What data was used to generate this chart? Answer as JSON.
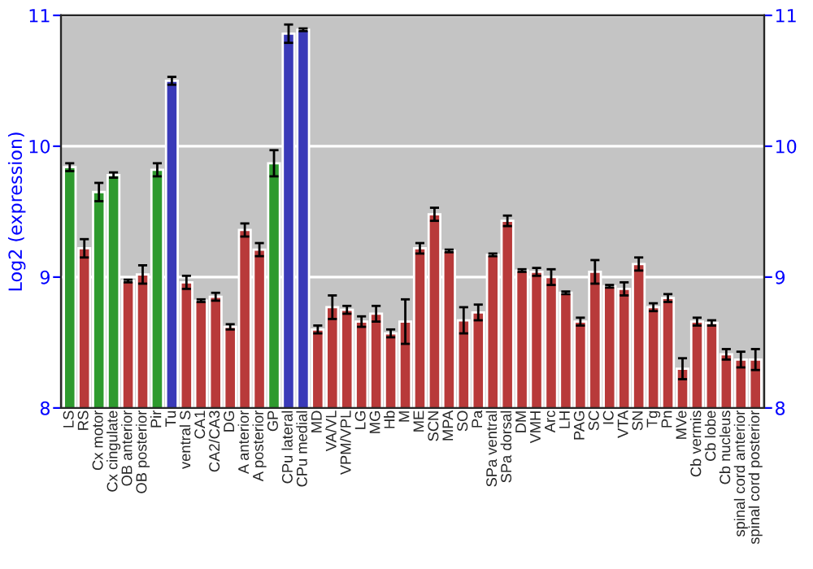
{
  "chart_data": {
    "type": "bar",
    "ylabel": "Log2 (expression)",
    "categories": [
      "LS",
      "RS",
      "Cx motor",
      "Cx cingulate",
      "OB anterior",
      "OB posterior",
      "Pir",
      "Tu",
      "ventral S",
      "CA1",
      "CA2/CA3",
      "DG",
      "A anterior",
      "A posterior",
      "GP",
      "CPu lateral",
      "CPu medial",
      "MD",
      "VA/VL",
      "VPM/VPL",
      "LG",
      "MG",
      "Hb",
      "M",
      "ME",
      "SCN",
      "MPA",
      "SO",
      "Pa",
      "SPa ventral",
      "SPa dorsal",
      "DM",
      "VMH",
      "Arc",
      "LH",
      "PAG",
      "SC",
      "IC",
      "VTA",
      "SN",
      "Tg",
      "Pn",
      "MVe",
      "Cb vermis",
      "Cb lobe",
      "Cb nucleus",
      "spinal cord anterior",
      "spinal cord posterior"
    ],
    "values": [
      9.84,
      9.22,
      9.65,
      9.78,
      8.97,
      9.02,
      9.82,
      10.5,
      8.96,
      8.82,
      8.85,
      8.62,
      9.36,
      9.21,
      9.87,
      10.86,
      10.89,
      8.6,
      8.77,
      8.75,
      8.66,
      8.72,
      8.57,
      8.66,
      9.22,
      9.48,
      9.2,
      8.67,
      8.73,
      9.17,
      9.43,
      9.05,
      9.04,
      9.0,
      8.88,
      8.66,
      9.04,
      8.93,
      8.91,
      9.1,
      8.77,
      8.84,
      8.3,
      8.66,
      8.65,
      8.41,
      8.37,
      8.37
    ],
    "errors": [
      0.03,
      0.07,
      0.07,
      0.02,
      0.01,
      0.07,
      0.05,
      0.03,
      0.05,
      0.01,
      0.03,
      0.02,
      0.05,
      0.05,
      0.1,
      0.07,
      0.01,
      0.03,
      0.09,
      0.03,
      0.04,
      0.06,
      0.03,
      0.17,
      0.04,
      0.05,
      0.01,
      0.1,
      0.06,
      0.01,
      0.04,
      0.01,
      0.03,
      0.06,
      0.01,
      0.03,
      0.09,
      0.01,
      0.05,
      0.05,
      0.03,
      0.03,
      0.08,
      0.03,
      0.02,
      0.04,
      0.06,
      0.08
    ],
    "colors": [
      "#2e9a2e",
      "#b83a3a",
      "#2e9a2e",
      "#2e9a2e",
      "#b83a3a",
      "#b83a3a",
      "#2e9a2e",
      "#3a3ab8",
      "#b83a3a",
      "#b83a3a",
      "#b83a3a",
      "#b83a3a",
      "#b83a3a",
      "#b83a3a",
      "#2e9a2e",
      "#3a3ab8",
      "#3a3ab8",
      "#b83a3a",
      "#b83a3a",
      "#b83a3a",
      "#b83a3a",
      "#b83a3a",
      "#b83a3a",
      "#b83a3a",
      "#b83a3a",
      "#b83a3a",
      "#b83a3a",
      "#b83a3a",
      "#b83a3a",
      "#b83a3a",
      "#b83a3a",
      "#b83a3a",
      "#b83a3a",
      "#b83a3a",
      "#b83a3a",
      "#b83a3a",
      "#b83a3a",
      "#b83a3a",
      "#b83a3a",
      "#b83a3a",
      "#b83a3a",
      "#b83a3a",
      "#b83a3a",
      "#b83a3a",
      "#b83a3a",
      "#b83a3a",
      "#b83a3a",
      "#b83a3a"
    ],
    "ylim": [
      8,
      11
    ],
    "yticks": [
      8,
      9,
      10,
      11
    ],
    "y2lim": [
      8,
      11
    ],
    "y2ticks": [
      8,
      9,
      10,
      11
    ],
    "grid": "y",
    "legend": false
  }
}
